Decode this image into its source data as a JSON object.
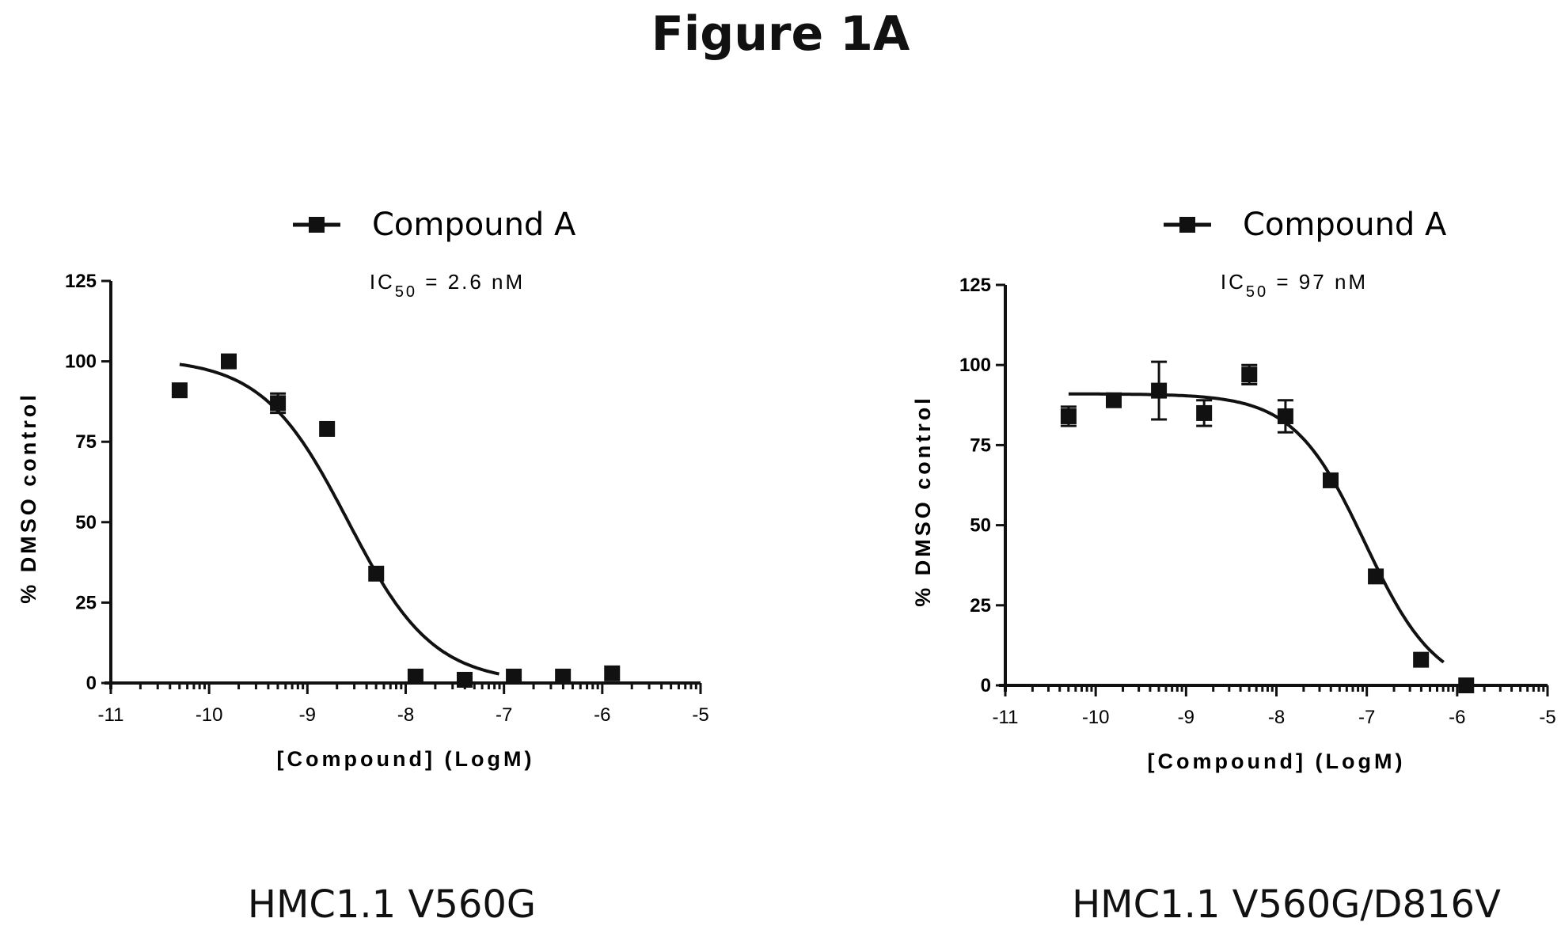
{
  "figure": {
    "title": "Figure 1A"
  },
  "chart_data": [
    {
      "type": "scatter",
      "caption": "HMC1.1 V560G",
      "legend": {
        "series_label": "Compound A",
        "position": "top-center"
      },
      "annotation": {
        "prefix": "IC",
        "subscript": "50",
        "suffix": "= 2.6 nM"
      },
      "xlabel": "[Compound] (LogM)",
      "ylabel": "% DMSO control",
      "xlim": [
        -11,
        -5
      ],
      "ylim": [
        0,
        125
      ],
      "xticks": [
        "-11",
        "-10",
        "-9",
        "-8",
        "-7",
        "-6",
        "-5"
      ],
      "yticks": [
        "0",
        "25",
        "50",
        "75",
        "100",
        "125"
      ],
      "series": [
        {
          "name": "Compound A",
          "x": [
            -10.3,
            -9.8,
            -9.3,
            -8.8,
            -8.3,
            -7.9,
            -7.4,
            -6.9,
            -6.4,
            -5.9
          ],
          "y": [
            91,
            100,
            87,
            79,
            34,
            2,
            1,
            2,
            2,
            3
          ],
          "err": [
            0,
            0,
            3,
            0,
            0,
            0,
            0,
            0,
            0,
            0
          ]
        }
      ],
      "fit": {
        "top": 101,
        "bottom": 0,
        "logIC50": -8.59,
        "hill": -1.0,
        "x_from": -10.3,
        "x_to": -7.05
      }
    },
    {
      "type": "scatter",
      "caption": "HMC1.1 V560G/D816V",
      "legend": {
        "series_label": "Compound A",
        "position": "top-center"
      },
      "annotation": {
        "prefix": "IC",
        "subscript": "50",
        "suffix": "= 97 nM"
      },
      "xlabel": "[Compound] (LogM)",
      "ylabel": "% DMSO control",
      "xlim": [
        -11,
        -5
      ],
      "ylim": [
        0,
        125
      ],
      "xticks": [
        "-11",
        "-10",
        "-9",
        "-8",
        "-7",
        "-6",
        "-5"
      ],
      "yticks": [
        "0",
        "25",
        "50",
        "75",
        "100",
        "125"
      ],
      "series": [
        {
          "name": "Compound A",
          "x": [
            -10.3,
            -9.8,
            -9.3,
            -8.8,
            -8.3,
            -7.9,
            -7.4,
            -6.9,
            -6.4,
            -5.9
          ],
          "y": [
            84,
            89,
            92,
            85,
            97,
            84,
            64,
            34,
            8,
            0
          ],
          "err": [
            3,
            0,
            9,
            4,
            3,
            5,
            0,
            0,
            0,
            0
          ]
        }
      ],
      "fit": {
        "top": 91,
        "bottom": -2,
        "logIC50": -7.02,
        "hill": -1.1,
        "x_from": -10.3,
        "x_to": -6.15
      }
    }
  ]
}
